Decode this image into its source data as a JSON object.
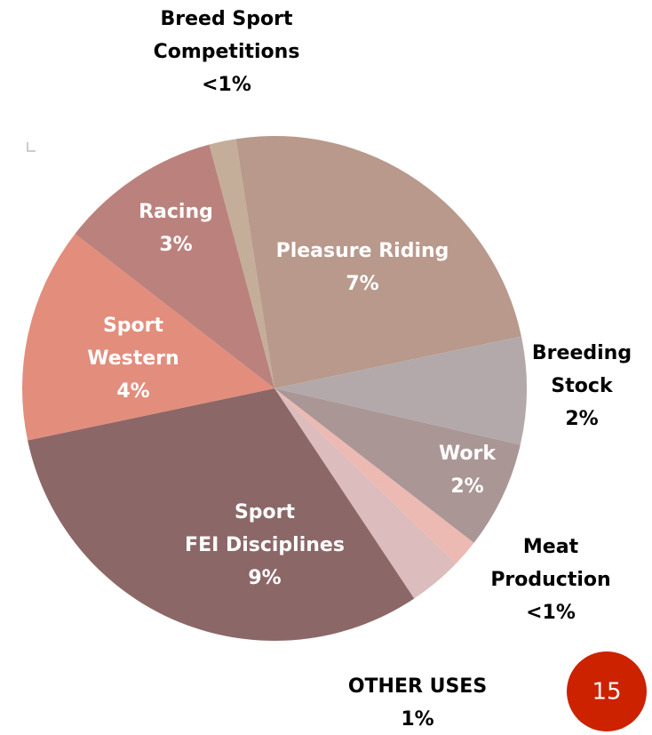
{
  "chart_data": {
    "type": "pie",
    "categories": [
      "Breed Sport\nCompetitions",
      "Pleasure Riding",
      "Breeding\nStock",
      "Work",
      "Meat\nProduction",
      "OTHER USES",
      "Sport\nFEI Disciplines",
      "Sport\nWestern",
      "Racing"
    ],
    "values": [
      0.5,
      7,
      2,
      2,
      0.5,
      1,
      9,
      4,
      3
    ],
    "value_labels": [
      "<1%",
      "7%",
      "2%",
      "2%",
      "<1%",
      "1%",
      "9%",
      "4%",
      "3%"
    ],
    "colors": [
      "#c4ae99",
      "#b8998c",
      "#b3a9aa",
      "#ab9696",
      "#ecbab2",
      "#dcbcbd",
      "#8c6767",
      "#e38d7d",
      "#bb817d"
    ]
  },
  "page_number": "15"
}
